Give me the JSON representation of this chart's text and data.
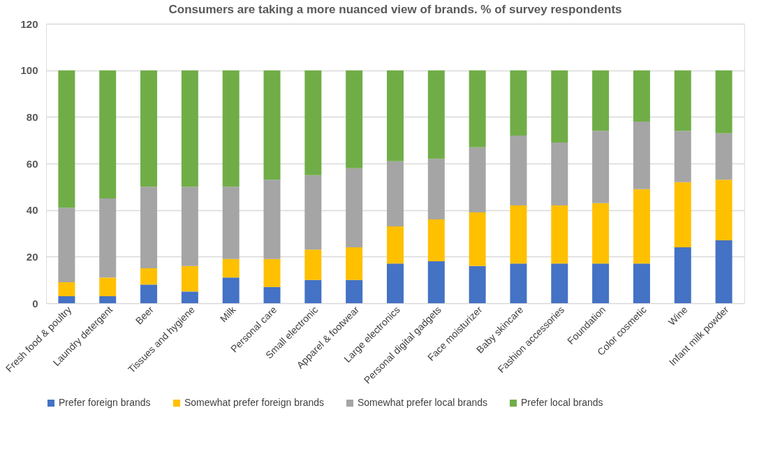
{
  "chart_data": {
    "type": "bar",
    "stacked": true,
    "title": "Consumers are taking a more nuanced view of brands. % of survey respondents",
    "categories": [
      "Fresh food & poultry",
      "Laundry detergent",
      "Beer",
      "Tissues and hygiene",
      "Milk",
      "Personal care",
      "Small electronic",
      "Apparel & footwear",
      "Large electronics",
      "Personal digital gadgets",
      "Face moisturizer",
      "Baby skincare",
      "Fashion accessories",
      "Foundation",
      "Color cosmetic",
      "Wine",
      "Infant milk powder"
    ],
    "series": [
      {
        "name": "Prefer foreign brands",
        "color": "#4472c4",
        "values": [
          3,
          3,
          8,
          5,
          11,
          7,
          10,
          10,
          17,
          18,
          16,
          17,
          17,
          17,
          17,
          24,
          27
        ]
      },
      {
        "name": "Somewhat prefer foreign brands",
        "color": "#ffc000",
        "values": [
          6,
          8,
          7,
          11,
          8,
          12,
          13,
          14,
          16,
          18,
          23,
          25,
          25,
          26,
          32,
          28,
          26
        ]
      },
      {
        "name": "Somewhat prefer local brands",
        "color": "#a5a5a5",
        "values": [
          32,
          34,
          35,
          34,
          31,
          34,
          32,
          34,
          28,
          26,
          28,
          30,
          27,
          31,
          29,
          22,
          20
        ]
      },
      {
        "name": "Prefer local brands",
        "color": "#70ad47",
        "values": [
          59,
          55,
          50,
          50,
          50,
          47,
          45,
          42,
          39,
          38,
          33,
          28,
          31,
          26,
          22,
          26,
          27
        ]
      }
    ],
    "ylim": [
      0,
      120
    ],
    "yticks": [
      0,
      20,
      40,
      60,
      80,
      100,
      120
    ],
    "grid": "y",
    "legend": "bottom"
  }
}
